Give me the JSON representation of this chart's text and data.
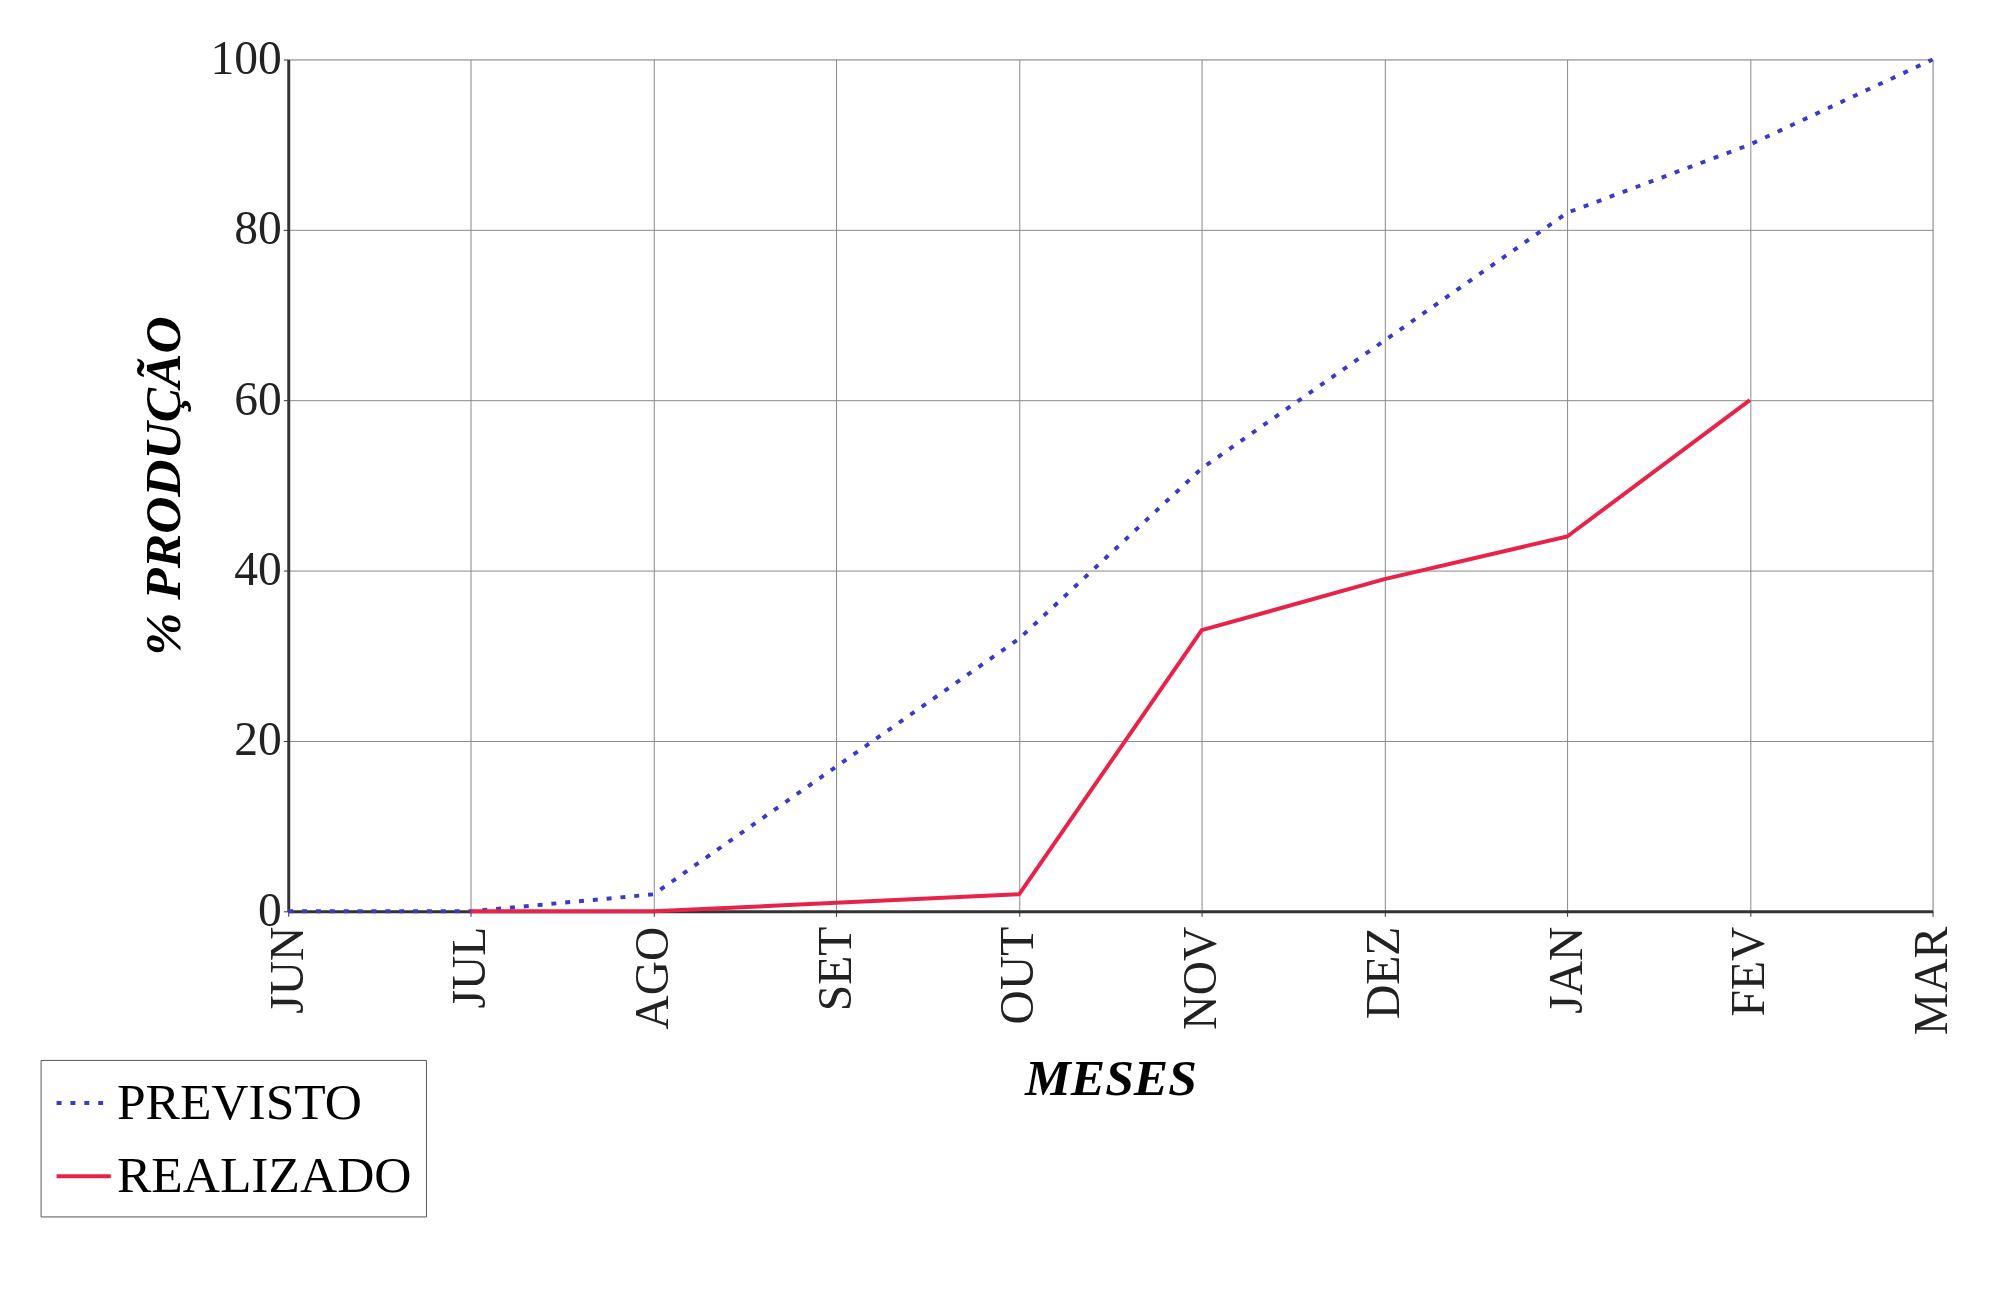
{
  "chart_data": {
    "type": "line",
    "xlabel": "MESES",
    "ylabel": "% PRODUÇÃO",
    "categories": [
      "JUN",
      "JUL",
      "AGO",
      "SET",
      "OUT",
      "NOV",
      "DEZ",
      "JAN",
      "FEV",
      "MAR"
    ],
    "series": [
      {
        "name": "PREVISTO",
        "color": "#3a3ac8",
        "line_style": "dotted",
        "values": [
          0,
          0,
          2,
          17,
          32,
          52,
          67,
          82,
          90,
          100
        ]
      },
      {
        "name": "REALIZADO",
        "color": "#e8234a",
        "line_style": "solid",
        "values": [
          null,
          0,
          0,
          1,
          2,
          33,
          39,
          44,
          60,
          null
        ]
      }
    ],
    "ylim": [
      0,
      100
    ],
    "yticks": [
      0,
      20,
      40,
      60,
      80,
      100
    ],
    "grid": true,
    "legend": "bottom left",
    "marker": "none"
  }
}
